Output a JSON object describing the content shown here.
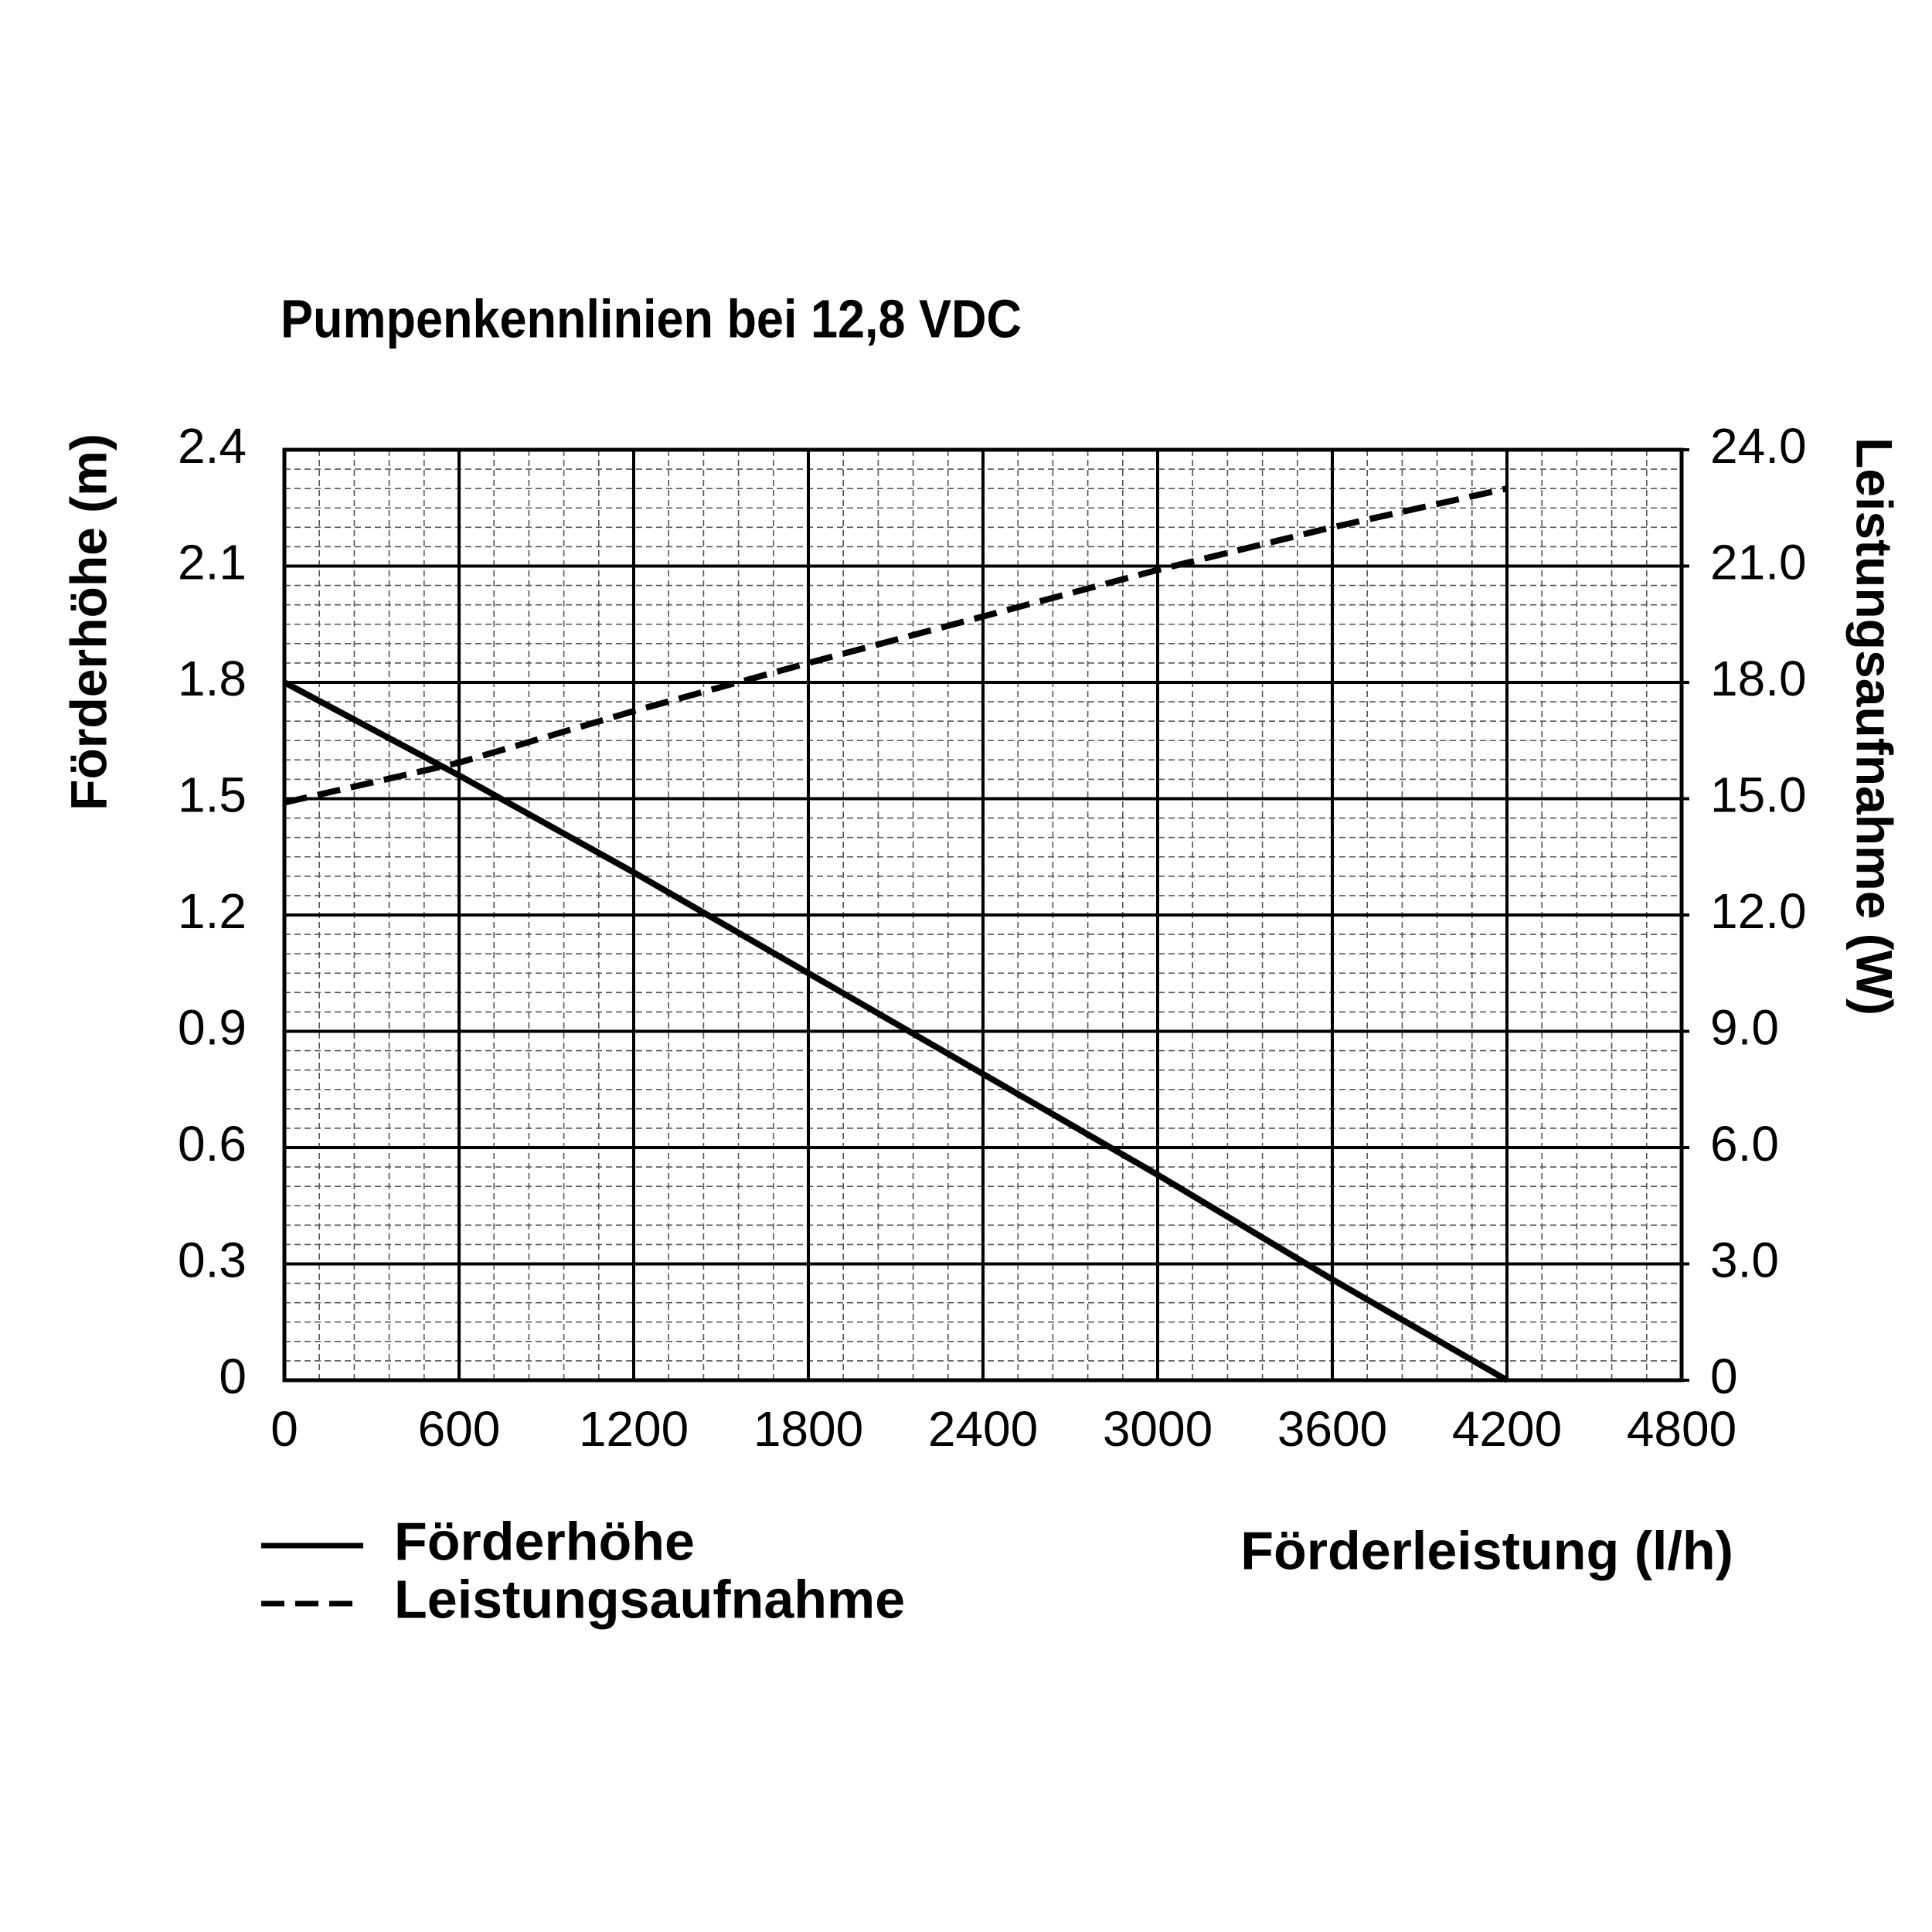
{
  "chart_data": {
    "type": "line",
    "title": "Pumpenkennlinien bei 12,8 VDC",
    "x_label": "Förderleistung (l/h)",
    "y_label": "Förderhöhe (m)",
    "y2_label": "Leistungsaufnahme (W)",
    "x": [
      0,
      600,
      1200,
      1800,
      2400,
      3000,
      3600,
      4200
    ],
    "series": [
      {
        "name": "Förderhöhe",
        "color": "#000000",
        "dash": "solid",
        "values": [
          1.8,
          1.56,
          1.31,
          1.05,
          0.79,
          0.53,
          0.26,
          0
        ]
      },
      {
        "name": "Leistungsaufnahme",
        "color": "#000000",
        "dash": "dashed",
        "axis": "y2",
        "values": [
          14.9,
          15.93,
          17.26,
          18.5,
          19.7,
          20.9,
          22.0,
          23.0
        ]
      }
    ],
    "xlim": [
      0,
      4800
    ],
    "xticks": [
      0,
      600,
      1200,
      1800,
      2400,
      3000,
      3600,
      4200,
      4800
    ],
    "ylim": [
      0,
      2.4
    ],
    "yticks": [
      0,
      0.3,
      0.6,
      0.9,
      1.2,
      1.5,
      1.8,
      2.1,
      2.4
    ],
    "y2lim": [
      0,
      24
    ],
    "y2ticks": [
      0,
      {
        "value": 3,
        "label": "3.0"
      },
      {
        "value": 6,
        "label": "6.0"
      },
      {
        "value": 9,
        "label": "9.0"
      },
      {
        "value": 12,
        "label": "12.0"
      },
      {
        "value": 15,
        "label": "15.0"
      },
      {
        "value": 18,
        "label": "18.0"
      },
      {
        "value": 21,
        "label": "21.0"
      },
      {
        "value": 24,
        "label": "24.0"
      }
    ],
    "grid": true,
    "minor_grid_divisions": [
      5,
      6
    ],
    "legend": "bottom-left"
  }
}
